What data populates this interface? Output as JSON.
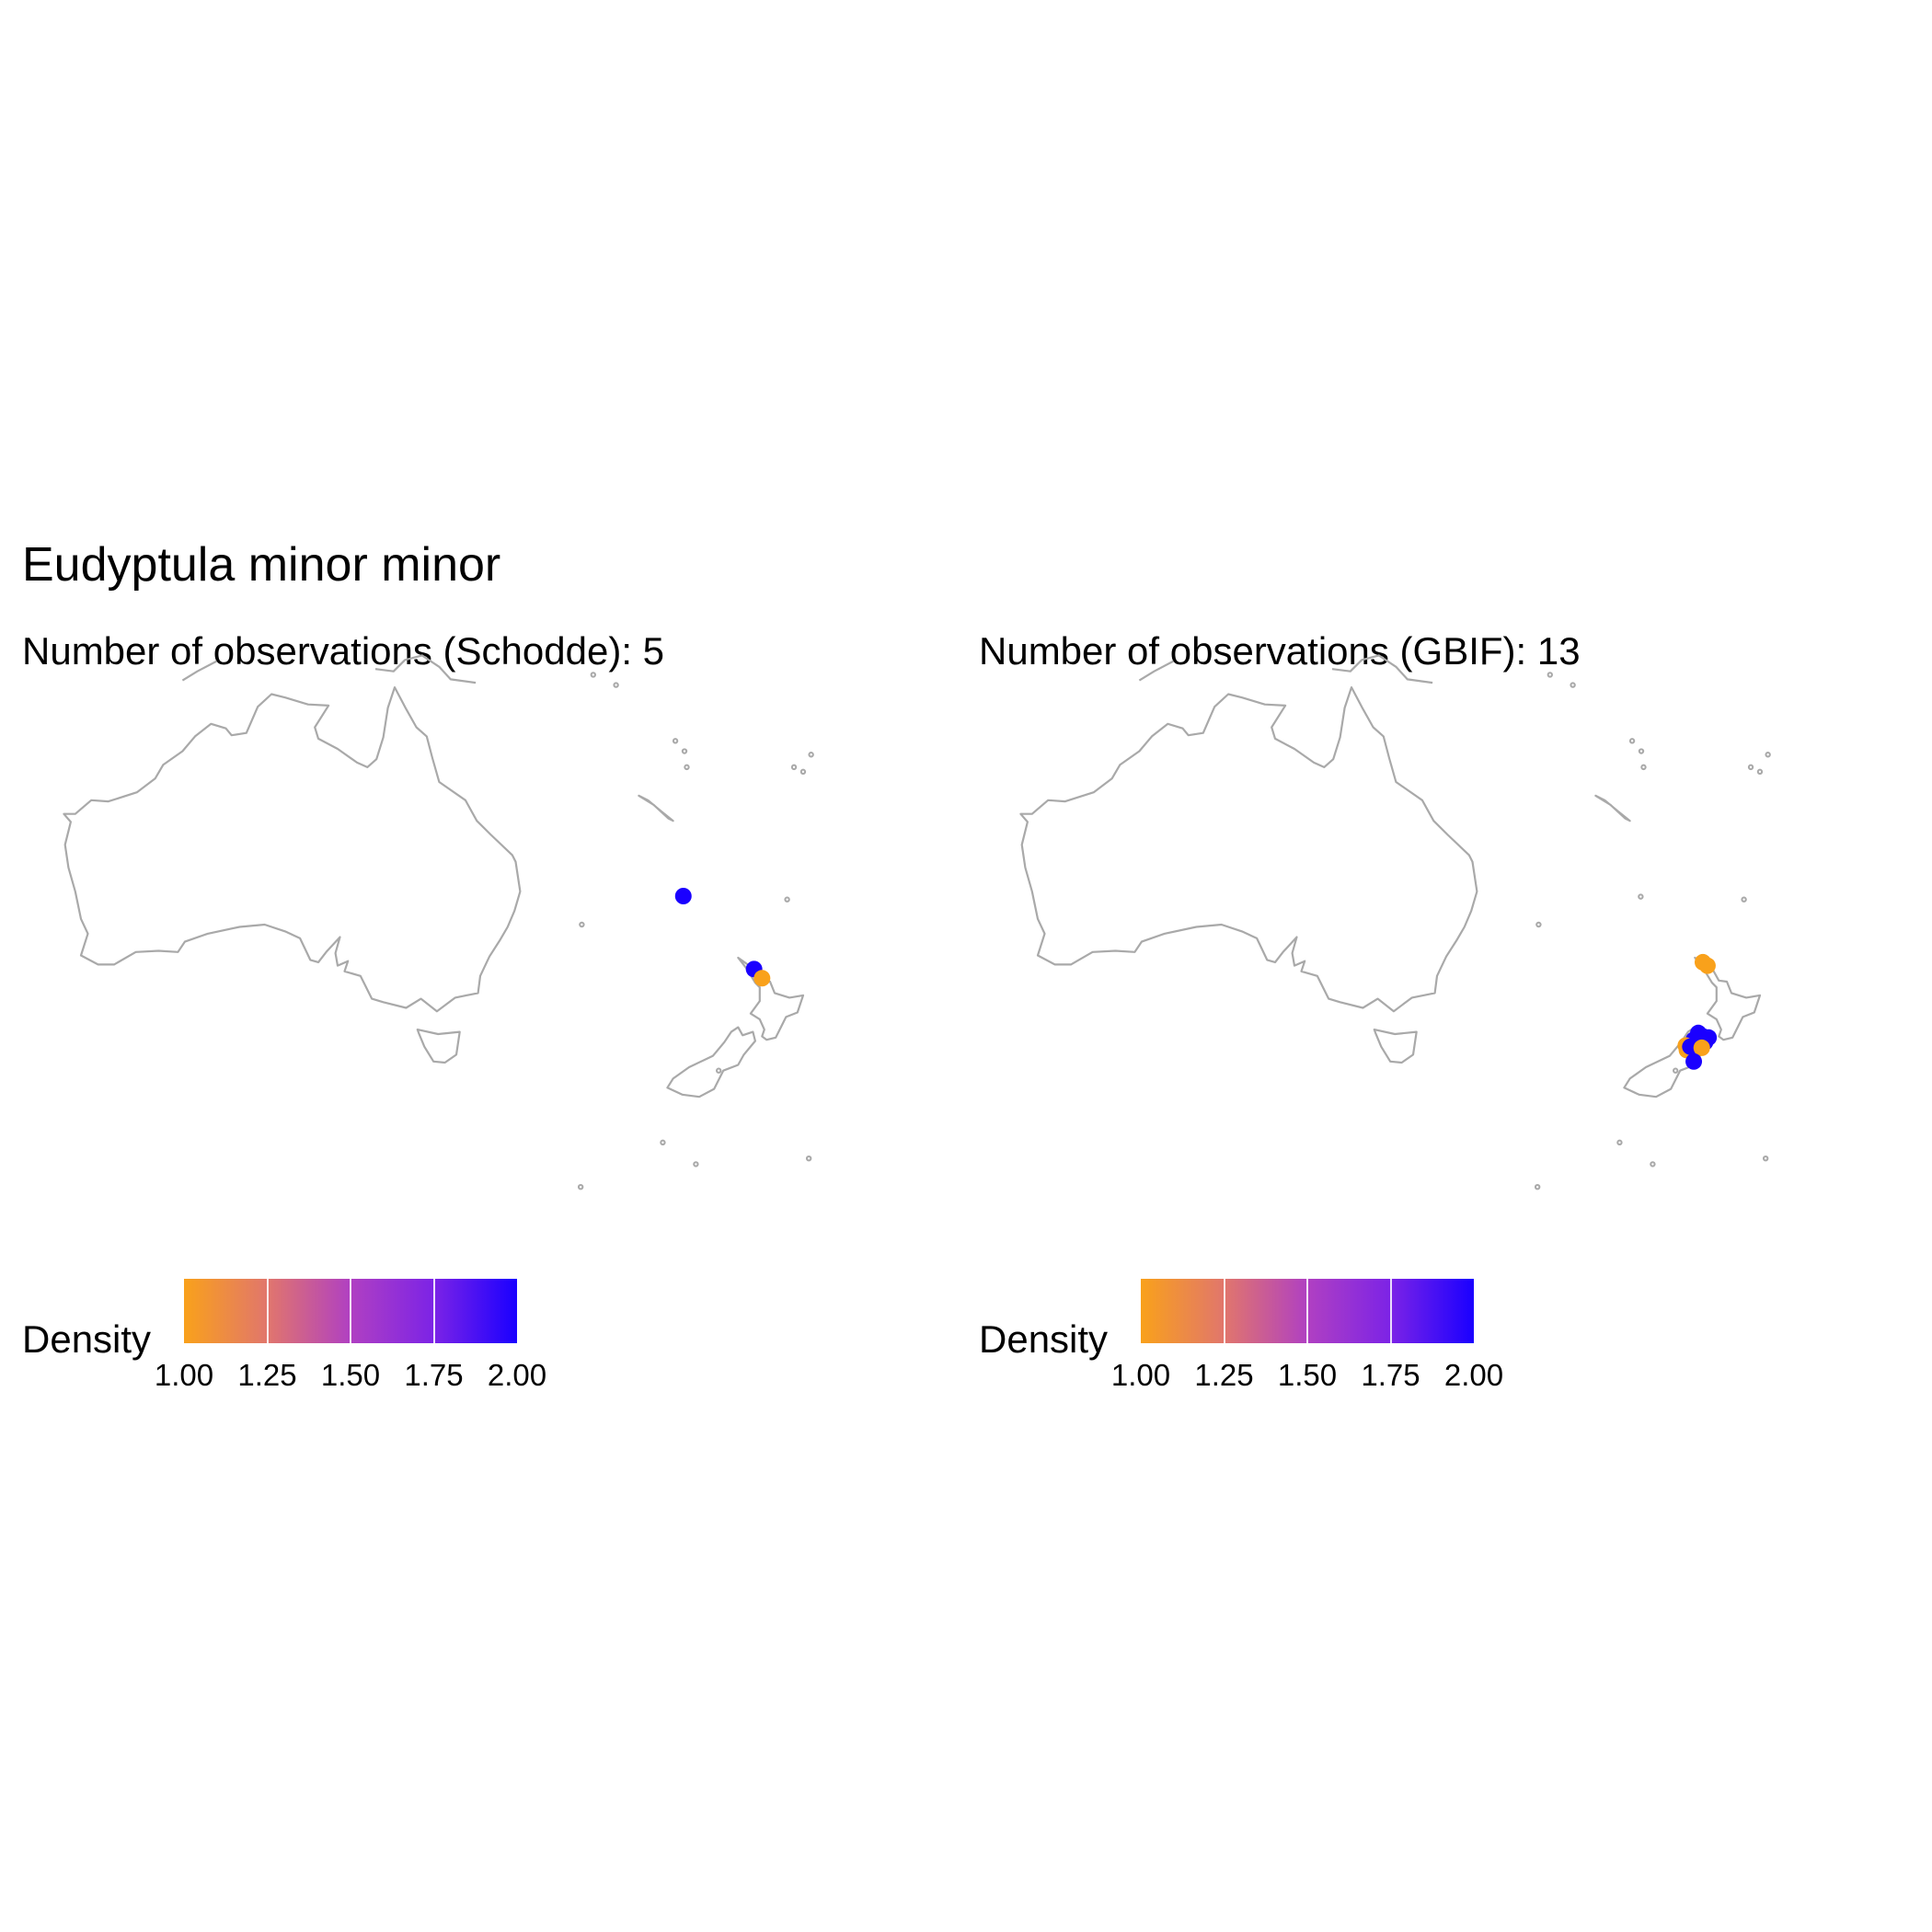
{
  "title": "Eudyptula minor minor",
  "colors": {
    "coastline": "#a9a9a9",
    "low_density": "#f9a11b",
    "high_density": "#1a00ff"
  },
  "panels": [
    {
      "subtitle": "Number of observations (Schodde): 5",
      "legend": {
        "title": "Density",
        "ticks": [
          "1.00",
          "1.25",
          "1.50",
          "1.75",
          "2.00"
        ]
      },
      "observations": [
        {
          "lon": 167.9,
          "lat": -29.0,
          "density": 2.0
        },
        {
          "lon": 174.1,
          "lat": -35.4,
          "density": 2.0
        },
        {
          "lon": 174.8,
          "lat": -36.2,
          "density": 1.0
        }
      ]
    },
    {
      "subtitle": "Number of observations (GBIF): 13",
      "legend": {
        "title": "Density",
        "ticks": [
          "1.00",
          "1.25",
          "1.50",
          "1.75",
          "2.00"
        ]
      },
      "observations": [
        {
          "lon": 173.4,
          "lat": -34.8,
          "density": 1.0
        },
        {
          "lon": 173.8,
          "lat": -35.1,
          "density": 1.0
        },
        {
          "lon": 173.0,
          "lat": -41.0,
          "density": 2.0
        },
        {
          "lon": 173.4,
          "lat": -41.3,
          "density": 2.0
        },
        {
          "lon": 173.9,
          "lat": -41.4,
          "density": 2.0
        },
        {
          "lon": 173.6,
          "lat": -41.8,
          "density": 2.0
        },
        {
          "lon": 172.6,
          "lat": -41.6,
          "density": 2.0
        },
        {
          "lon": 171.9,
          "lat": -42.1,
          "density": 1.0
        },
        {
          "lon": 172.0,
          "lat": -42.5,
          "density": 1.0
        },
        {
          "lon": 172.3,
          "lat": -42.2,
          "density": 2.0
        },
        {
          "lon": 173.3,
          "lat": -42.3,
          "density": 1.0
        },
        {
          "lon": 172.6,
          "lat": -43.5,
          "density": 2.0
        }
      ]
    }
  ]
}
